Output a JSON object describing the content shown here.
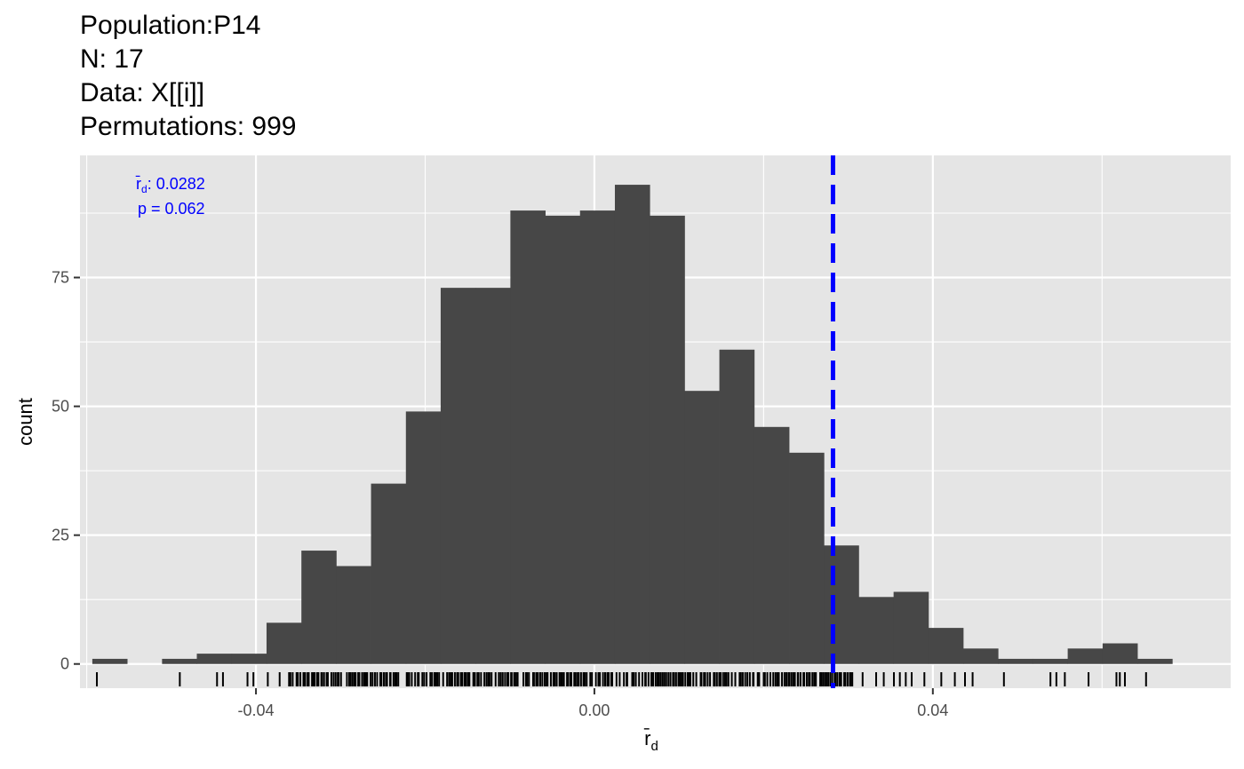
{
  "header": {
    "population": "Population:P14",
    "n": "N: 17",
    "data": "Data: X[[i]]",
    "permutations": "Permutations: 999"
  },
  "annotation": {
    "stat_label": "r̄",
    "stat_subscript": "d",
    "stat_value": ": 0.0282",
    "p_value": "p = 0.062"
  },
  "colors": {
    "panel": "#e5e5e5",
    "grid": "#ffffff",
    "bar": "#474747",
    "vline": "#0000ff",
    "annotation": "#0000ff"
  },
  "chart_data": {
    "type": "bar",
    "subtype": "histogram",
    "xlabel": "r̄",
    "xlabel_subscript": "d",
    "ylabel": "count",
    "xlim": [
      -0.0608,
      0.0752
    ],
    "ylim": [
      -4.7,
      98.7
    ],
    "x_ticks": [
      -0.04,
      0.0,
      0.04
    ],
    "x_tick_labels": [
      "-0.04",
      "0.00",
      "0.04"
    ],
    "y_ticks": [
      0,
      25,
      50,
      75
    ],
    "y_tick_labels": [
      "0",
      "25",
      "50",
      "75"
    ],
    "bin_width": 0.004117,
    "bin_starts": [
      -0.05934,
      -0.05522,
      -0.0511,
      -0.04699,
      -0.04287,
      -0.03875,
      -0.03463,
      -0.03052,
      -0.0264,
      -0.02228,
      -0.01817,
      -0.01405,
      -0.00993,
      -0.00581,
      -0.0017,
      0.00242,
      0.00654,
      0.01065,
      0.01477,
      0.01889,
      0.02301,
      0.02712,
      0.03124,
      0.03536,
      0.03947,
      0.04359,
      0.04771,
      0.05183,
      0.05594,
      0.06006,
      0.06418
    ],
    "counts": [
      1,
      0,
      1,
      2,
      2,
      8,
      22,
      19,
      35,
      49,
      73,
      73,
      88,
      87,
      88,
      93,
      87,
      53,
      61,
      46,
      41,
      23,
      13,
      14,
      7,
      3,
      1,
      1,
      3,
      4,
      1
    ],
    "observed_value": 0.0282,
    "grid": true,
    "rug": {
      "sparse_positions": [
        -0.0588,
        -0.049,
        -0.0446,
        -0.0439,
        -0.041,
        -0.0403,
        -0.0386,
        -0.0372,
        0.0317,
        0.0333,
        0.0342,
        0.0354,
        0.0361,
        0.0368,
        0.0375,
        0.039,
        0.041,
        0.0426,
        0.0438,
        0.0447,
        0.0484,
        0.0539,
        0.0546,
        0.0556,
        0.0584,
        0.0617,
        0.0621,
        0.0627,
        0.0652
      ],
      "dense_range": [
        -0.0361,
        0.0306
      ]
    }
  }
}
